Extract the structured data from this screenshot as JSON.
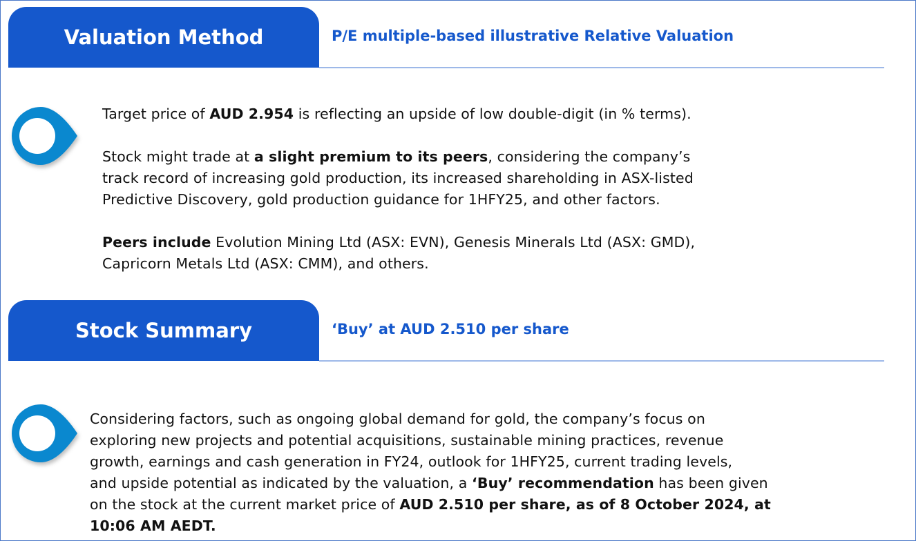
{
  "valuation": {
    "tab_label": "Valuation Method",
    "subtitle": "P/E multiple-based illustrative Relative Valuation",
    "paragraphs": [
      [
        [
          {
            "t": "Target price of "
          },
          {
            "t": "AUD 2.954",
            "b": true
          },
          {
            "t": " is reflecting an upside of low double-digit (in % terms)."
          }
        ]
      ],
      [
        [
          {
            "t": "Stock might trade at "
          },
          {
            "t": "a slight premium to its peers",
            "b": true
          },
          {
            "t": ", considering the company’s"
          }
        ],
        [
          {
            "t": "track record of increasing gold production, its increased shareholding in ASX-listed"
          }
        ],
        [
          {
            "t": "Predictive Discovery, gold production guidance for 1HFY25, and other factors."
          }
        ]
      ],
      [
        [
          {
            "t": "Peers include",
            "b": true
          },
          {
            "t": " Evolution Mining Ltd (ASX: EVN), Genesis Minerals Ltd (ASX: GMD),"
          }
        ],
        [
          {
            "t": "Capricorn Metals Ltd (ASX: CMM), and others."
          }
        ]
      ]
    ]
  },
  "summary": {
    "tab_label": "Stock Summary",
    "subtitle": "‘Buy’ at AUD 2.510 per share",
    "paragraphs": [
      [
        [
          {
            "t": "Considering factors, such as ongoing global demand for gold, the company’s focus on"
          }
        ],
        [
          {
            "t": "exploring new projects and potential acquisitions, sustainable mining practices, revenue"
          }
        ],
        [
          {
            "t": "growth, earnings and cash generation in FY24, outlook for 1HFY25, current trading levels,"
          }
        ],
        [
          {
            "t": "and upside potential as indicated by the valuation, a "
          },
          {
            "t": "‘Buy’ recommendation",
            "b": true
          },
          {
            "t": " has been given"
          }
        ],
        [
          {
            "t": "on the stock at the current market price of "
          },
          {
            "t": "AUD 2.510 per share, as of 8 October 2024, at",
            "b": true
          }
        ],
        [
          {
            "t": "10:06 AM AEDT.",
            "b": true
          }
        ]
      ]
    ]
  },
  "colors": {
    "accent": "#1558cc",
    "pin": "#0a88cf",
    "rule": "#9db8e8"
  },
  "icons": {
    "bullet": "location-pin-icon"
  }
}
